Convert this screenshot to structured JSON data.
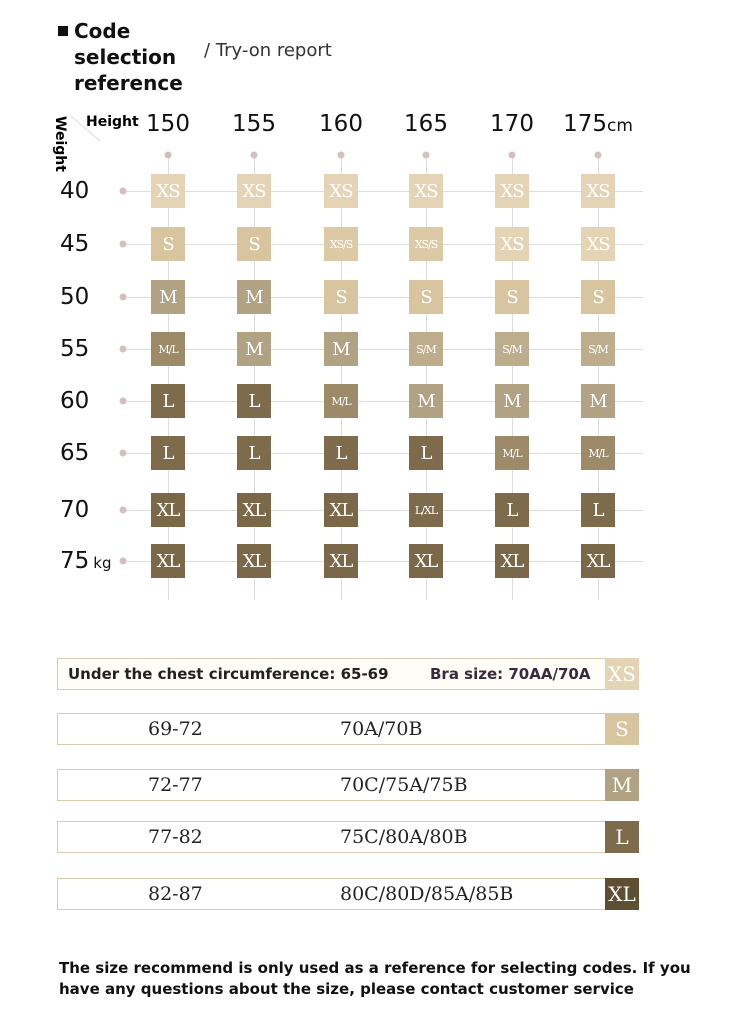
{
  "title": "Code selection reference",
  "subtitle": "/ Try-on report",
  "height_label": "Height",
  "weight_label": "Weight",
  "heights": [
    "150",
    "155",
    "160",
    "165",
    "170",
    "175"
  ],
  "height_unit": "cm",
  "weights": [
    "40",
    "45",
    "50",
    "55",
    "60",
    "65",
    "70",
    "75"
  ],
  "weight_unit": "kg",
  "grid": [
    [
      "XS",
      "XS",
      "XS",
      "XS",
      "XS",
      "XS"
    ],
    [
      "S",
      "S",
      "XS/S",
      "XS/S",
      "XS",
      "XS"
    ],
    [
      "M",
      "M",
      "S",
      "S",
      "S",
      "S"
    ],
    [
      "M/L",
      "M",
      "M",
      "S/M",
      "S/M",
      "S/M"
    ],
    [
      "L",
      "L",
      "M/L",
      "M",
      "M",
      "M"
    ],
    [
      "L",
      "L",
      "L",
      "L",
      "M/L",
      "M/L"
    ],
    [
      "XL",
      "XL",
      "XL",
      "L/XL",
      "L",
      "L"
    ],
    [
      "XL",
      "XL",
      "XL",
      "XL",
      "XL",
      "XL"
    ]
  ],
  "bra_table": [
    {
      "chest": "Under the chest circumference: 65-69",
      "bra": "Bra size: 70AA/70A",
      "size": "XS",
      "color": "#e4d4b5"
    },
    {
      "chest": "69-72",
      "bra": "70A/70B",
      "size": "S",
      "color": "#d8c49f"
    },
    {
      "chest": "72-77",
      "bra": "70C/75A/75B",
      "size": "M",
      "color": "#b2a284"
    },
    {
      "chest": "77-82",
      "bra": "75C/80A/80B",
      "size": "L",
      "color": "#7d6b4c"
    },
    {
      "chest": "82-87",
      "bra": "80C/80D/85A/85B",
      "size": "XL",
      "color": "#5e4e32"
    }
  ],
  "note": "The size recommend is only used as a reference for selecting codes. If you have any questions about the size, please contact customer service"
}
